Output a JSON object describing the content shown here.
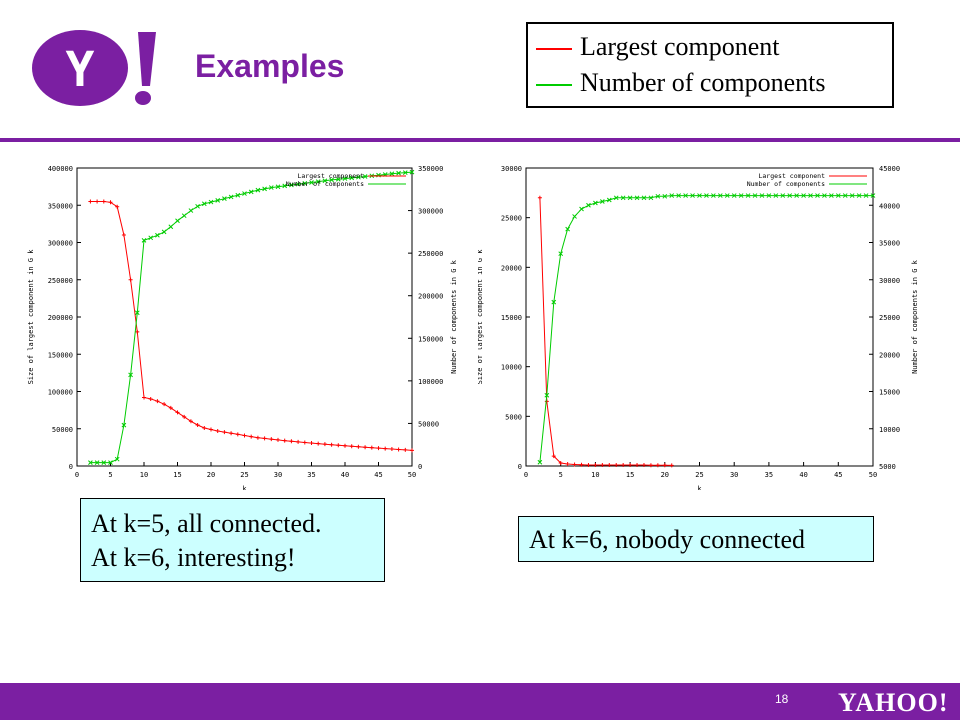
{
  "slide": {
    "title": "Examples",
    "page_number": "18",
    "logo_text": "Y!",
    "footer_logo_text": "YAHOO!",
    "accent_color": "#7b1fa2"
  },
  "legend": {
    "items": [
      {
        "label": "Largest component",
        "color": "#ff0000"
      },
      {
        "label": "Number of components",
        "color": "#00cc00"
      }
    ]
  },
  "callouts": {
    "left_line1": "At k=5, all connected.",
    "left_line2": "At k=6, interesting!",
    "right": "At k=6, nobody connected"
  },
  "chart_data": [
    {
      "type": "line",
      "xlabel": "k",
      "ylabel": "Size of largest component in G k",
      "y2label": "Number of components in G k",
      "xlim": [
        0,
        50
      ],
      "ylim": [
        0,
        400000
      ],
      "y2lim": [
        0,
        350000
      ],
      "x_ticks": [
        0,
        5,
        10,
        15,
        20,
        25,
        30,
        35,
        40,
        45,
        50
      ],
      "y_ticks": [
        0,
        50000,
        100000,
        150000,
        200000,
        250000,
        300000,
        350000,
        400000
      ],
      "y2_ticks": [
        0,
        50000,
        100000,
        150000,
        200000,
        250000,
        300000,
        350000
      ],
      "legend_position": "top-right",
      "series": [
        {
          "name": "Largest component",
          "axis": "left",
          "color": "#ff0000",
          "x": [
            2,
            3,
            4,
            5,
            6,
            7,
            8,
            9,
            10,
            11,
            12,
            13,
            14,
            15,
            16,
            17,
            18,
            19,
            20,
            21,
            22,
            23,
            24,
            25,
            26,
            27,
            28,
            29,
            30,
            31,
            32,
            33,
            34,
            35,
            36,
            37,
            38,
            39,
            40,
            41,
            42,
            43,
            44,
            45,
            46,
            47,
            48,
            49,
            50
          ],
          "y": [
            355000,
            355000,
            355000,
            354000,
            348000,
            310000,
            250000,
            180000,
            92000,
            90000,
            87000,
            83000,
            78000,
            72000,
            66000,
            60000,
            55000,
            51000,
            49000,
            47000,
            45500,
            44000,
            42500,
            41000,
            39500,
            38000,
            37000,
            36000,
            35000,
            34000,
            33200,
            32400,
            31600,
            30800,
            30000,
            29300,
            28600,
            27900,
            27200,
            26500,
            25800,
            25200,
            24600,
            24000,
            23400,
            22800,
            22200,
            21600,
            21000
          ]
        },
        {
          "name": "Number of components",
          "axis": "right",
          "color": "#00cc00",
          "x": [
            2,
            3,
            4,
            5,
            6,
            7,
            8,
            9,
            10,
            11,
            12,
            13,
            14,
            15,
            16,
            17,
            18,
            19,
            20,
            21,
            22,
            23,
            24,
            25,
            26,
            27,
            28,
            29,
            30,
            31,
            32,
            33,
            34,
            35,
            36,
            37,
            38,
            39,
            40,
            41,
            42,
            43,
            44,
            45,
            46,
            47,
            48,
            49,
            50
          ],
          "y": [
            4000,
            4000,
            4000,
            4000,
            8000,
            48000,
            107000,
            180000,
            265000,
            268000,
            271000,
            275000,
            281000,
            288000,
            294000,
            300000,
            305000,
            308000,
            310000,
            312000,
            314000,
            316000,
            318000,
            320000,
            322000,
            324000,
            325500,
            327000,
            328000,
            329000,
            330000,
            331000,
            332000,
            333000,
            334000,
            335000,
            336000,
            336800,
            337600,
            338400,
            339200,
            340000,
            340800,
            341600,
            342400,
            343200,
            344000,
            344600,
            345200
          ]
        }
      ]
    },
    {
      "type": "line",
      "xlabel": "k",
      "ylabel": "Size of largest component in G k",
      "y2label": "Number of components in G k",
      "xlim": [
        0,
        50
      ],
      "ylim": [
        0,
        30000
      ],
      "y2lim": [
        5000,
        45000
      ],
      "x_ticks": [
        0,
        5,
        10,
        15,
        20,
        25,
        30,
        35,
        40,
        45,
        50
      ],
      "y_ticks": [
        0,
        5000,
        10000,
        15000,
        20000,
        25000,
        30000
      ],
      "y2_ticks": [
        5000,
        10000,
        15000,
        20000,
        25000,
        30000,
        35000,
        40000,
        45000
      ],
      "legend_position": "top-right",
      "series": [
        {
          "name": "Largest component",
          "axis": "left",
          "color": "#ff0000",
          "x": [
            2,
            3,
            4,
            5,
            6,
            7,
            8,
            9,
            10,
            11,
            12,
            13,
            14,
            15,
            16,
            17,
            18,
            19,
            20,
            21
          ],
          "y": [
            27000,
            6500,
            1000,
            300,
            200,
            150,
            120,
            100,
            100,
            100,
            100,
            100,
            100,
            100,
            100,
            100,
            80,
            80,
            80,
            60
          ]
        },
        {
          "name": "Number of components",
          "axis": "right",
          "color": "#00cc00",
          "x": [
            2,
            3,
            4,
            5,
            6,
            7,
            8,
            9,
            10,
            11,
            12,
            13,
            14,
            15,
            16,
            17,
            18,
            19,
            20,
            21,
            22,
            23,
            24,
            25,
            26,
            27,
            28,
            29,
            30,
            31,
            32,
            33,
            34,
            35,
            36,
            37,
            38,
            39,
            40,
            41,
            42,
            43,
            44,
            45,
            46,
            47,
            48,
            49,
            50
          ],
          "y": [
            5500,
            14500,
            27000,
            33500,
            36800,
            38500,
            39500,
            40000,
            40300,
            40500,
            40700,
            41000,
            41000,
            41000,
            41000,
            41000,
            41000,
            41200,
            41200,
            41300,
            41300,
            41300,
            41300,
            41300,
            41300,
            41300,
            41300,
            41300,
            41300,
            41300,
            41300,
            41300,
            41300,
            41300,
            41300,
            41300,
            41300,
            41300,
            41300,
            41300,
            41300,
            41300,
            41300,
            41300,
            41300,
            41300,
            41300,
            41300,
            41300
          ]
        }
      ]
    }
  ]
}
